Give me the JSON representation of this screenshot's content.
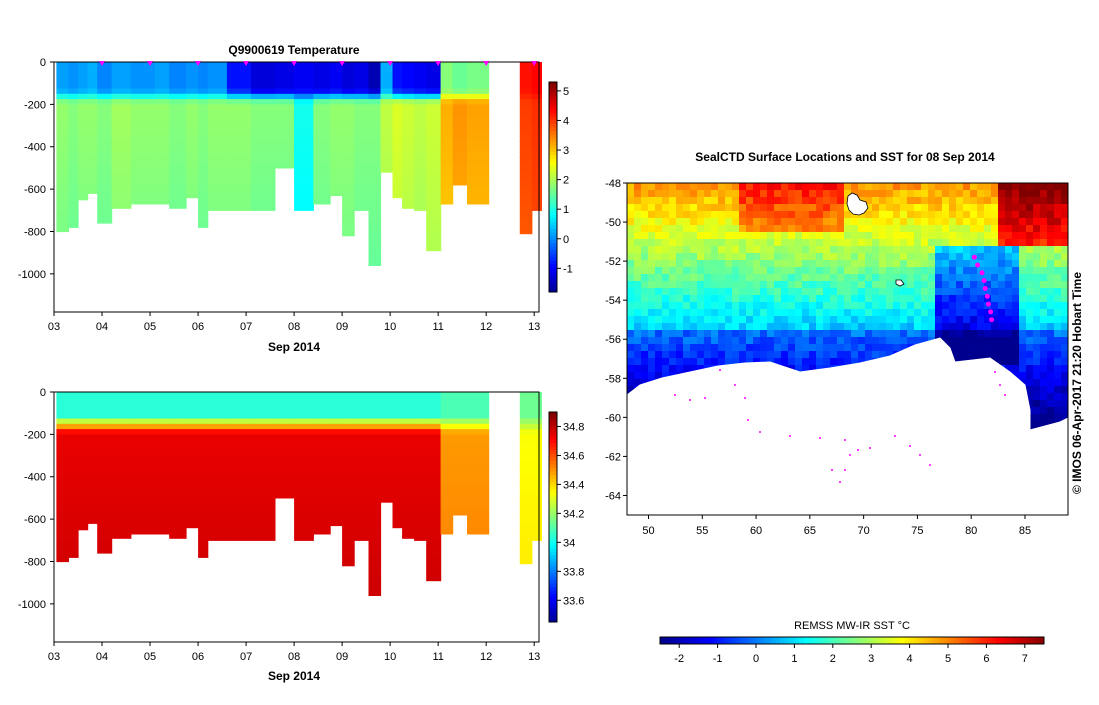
{
  "colors": {
    "jet": [
      "#00008f",
      "#0000ff",
      "#0080ff",
      "#00ffff",
      "#80ff80",
      "#ffff00",
      "#ff8000",
      "#ff0000",
      "#800000"
    ],
    "profile_marker": "#ff00ff",
    "track": "#ff00ff",
    "land": "#ffffff"
  },
  "chart_data": [
    {
      "id": "temperature",
      "type": "heatmap",
      "title": "Q9900619  Temperature",
      "xlabel": "Sep 2014",
      "x_tick_labels": [
        "03",
        "04",
        "05",
        "06",
        "07",
        "08",
        "09",
        "10",
        "11",
        "12",
        "13"
      ],
      "x_ticks": [
        3,
        4,
        5,
        6,
        7,
        8,
        9,
        10,
        11,
        12,
        13
      ],
      "xlim": [
        3.0,
        13.1
      ],
      "y_tick_labels": [
        "0",
        "-200",
        "-400",
        "-600",
        "-800",
        "-1000"
      ],
      "y_ticks": [
        0,
        -200,
        -400,
        -600,
        -800,
        -1000
      ],
      "ylim": [
        -1180,
        0
      ],
      "colorbar": {
        "ticks": [
          5,
          4,
          3,
          2,
          1,
          0,
          -1
        ],
        "tick_labels": [
          "5",
          "4",
          "3",
          "2",
          "1",
          "0",
          "-1"
        ],
        "range": [
          -1.8,
          5.3
        ]
      },
      "profile_markers": [
        4,
        5,
        6,
        7,
        8,
        9,
        10,
        11,
        12,
        13
      ],
      "profiles": [
        {
          "t": 3.05,
          "maxdepth": -800,
          "surface": 0.2,
          "deep": 1.9
        },
        {
          "t": 3.3,
          "maxdepth": -780,
          "surface": 0.1,
          "deep": 1.8
        },
        {
          "t": 3.5,
          "maxdepth": -650,
          "surface": 0.2,
          "deep": 1.9
        },
        {
          "t": 3.7,
          "maxdepth": -620,
          "surface": 0.3,
          "deep": 1.9
        },
        {
          "t": 3.9,
          "maxdepth": -760,
          "surface": 0.0,
          "deep": 1.8
        },
        {
          "t": 4.2,
          "maxdepth": -690,
          "surface": 0.2,
          "deep": 2.0
        },
        {
          "t": 4.6,
          "maxdepth": -670,
          "surface": 0.1,
          "deep": 1.9
        },
        {
          "t": 5.1,
          "maxdepth": -670,
          "surface": 0.2,
          "deep": 1.9
        },
        {
          "t": 5.4,
          "maxdepth": -690,
          "surface": 0.0,
          "deep": 1.8
        },
        {
          "t": 5.75,
          "maxdepth": -640,
          "surface": 0.1,
          "deep": 1.9
        },
        {
          "t": 6.0,
          "maxdepth": -780,
          "surface": 0.0,
          "deep": 1.8
        },
        {
          "t": 6.2,
          "maxdepth": -700,
          "surface": 0.1,
          "deep": 1.9
        },
        {
          "t": 6.6,
          "maxdepth": -700,
          "surface": -0.8,
          "deep": 1.9
        },
        {
          "t": 7.1,
          "maxdepth": -700,
          "surface": -1.2,
          "deep": 1.8
        },
        {
          "t": 7.6,
          "maxdepth": -500,
          "surface": -1.1,
          "deep": 1.8
        },
        {
          "t": 8.0,
          "maxdepth": -700,
          "surface": -1.0,
          "deep": 1.0
        },
        {
          "t": 8.4,
          "maxdepth": -670,
          "surface": -1.1,
          "deep": 1.8
        },
        {
          "t": 8.75,
          "maxdepth": -630,
          "surface": -1.0,
          "deep": 1.9
        },
        {
          "t": 9.0,
          "maxdepth": -820,
          "surface": -1.2,
          "deep": 1.9
        },
        {
          "t": 9.25,
          "maxdepth": -700,
          "surface": -1.1,
          "deep": 1.8
        },
        {
          "t": 9.55,
          "maxdepth": -960,
          "surface": -1.5,
          "deep": 1.8
        },
        {
          "t": 9.8,
          "maxdepth": -520,
          "surface": 0.3,
          "deep": 2.2
        },
        {
          "t": 10.05,
          "maxdepth": -640,
          "surface": -0.8,
          "deep": 2.4
        },
        {
          "t": 10.25,
          "maxdepth": -690,
          "surface": -0.9,
          "deep": 2.3
        },
        {
          "t": 10.5,
          "maxdepth": -700,
          "surface": -1.0,
          "deep": 2.2
        },
        {
          "t": 10.75,
          "maxdepth": -890,
          "surface": -1.1,
          "deep": 2.3
        },
        {
          "t": 11.05,
          "maxdepth": -670,
          "surface": 1.8,
          "deep": 3.2
        },
        {
          "t": 11.3,
          "maxdepth": -580,
          "surface": 1.6,
          "deep": 3.4
        },
        {
          "t": 11.6,
          "maxdepth": -670,
          "surface": 1.7,
          "deep": 3.3
        },
        {
          "t": 12.7,
          "maxdepth": -810,
          "surface": 4.3,
          "deep": 4.0
        },
        {
          "t": 12.95,
          "maxdepth": -700,
          "surface": 4.4,
          "deep": 4.1
        }
      ]
    },
    {
      "id": "salinity",
      "type": "heatmap",
      "title": "",
      "xlabel": "Sep 2014",
      "x_tick_labels": [
        "03",
        "04",
        "05",
        "06",
        "07",
        "08",
        "09",
        "10",
        "11",
        "12",
        "13"
      ],
      "x_ticks": [
        3,
        4,
        5,
        6,
        7,
        8,
        9,
        10,
        11,
        12,
        13
      ],
      "xlim": [
        3.0,
        13.1
      ],
      "y_tick_labels": [
        "0",
        "-200",
        "-400",
        "-600",
        "-800",
        "-1000"
      ],
      "y_ticks": [
        0,
        -200,
        -400,
        -600,
        -800,
        -1000
      ],
      "ylim": [
        -1180,
        0
      ],
      "colorbar": {
        "ticks": [
          34.8,
          34.6,
          34.4,
          34.2,
          34,
          33.8,
          33.6
        ],
        "tick_labels": [
          "34.8",
          "34.6",
          "34.4",
          "34.2",
          "34",
          "33.8",
          "33.6"
        ],
        "range": [
          33.45,
          34.9
        ]
      },
      "profiles_from": "temperature",
      "surface_value": 34.05,
      "deep_value": 34.75
    },
    {
      "id": "sst_map",
      "type": "heatmap",
      "title": "SealCTD Surface Locations and SST for 08 Sep 2014",
      "x_tick_labels": [
        "50",
        "55",
        "60",
        "65",
        "70",
        "75",
        "80",
        "85"
      ],
      "x_ticks": [
        50,
        55,
        60,
        65,
        70,
        75,
        80,
        85
      ],
      "xlim": [
        48,
        89
      ],
      "y_tick_labels": [
        "-48",
        "-50",
        "-52",
        "-54",
        "-56",
        "-58",
        "-60",
        "-62",
        "-64"
      ],
      "y_ticks": [
        -48,
        -50,
        -52,
        -54,
        -56,
        -58,
        -60,
        -62,
        -64
      ],
      "ylim": [
        -65,
        -48
      ],
      "colorbar": {
        "label": "REMSS MW-IR SST °C",
        "ticks": [
          -2,
          -1,
          0,
          1,
          2,
          3,
          4,
          5,
          6,
          7
        ],
        "tick_labels": [
          "-2",
          "-1",
          "0",
          "1",
          "2",
          "3",
          "4",
          "5",
          "6",
          "7"
        ],
        "range": [
          -2.5,
          7.5
        ]
      },
      "track_points": [
        [
          80.3,
          -51.8
        ],
        [
          80.6,
          -52.2
        ],
        [
          81.0,
          -52.6
        ],
        [
          81.2,
          -53.0
        ],
        [
          81.3,
          -53.4
        ],
        [
          81.5,
          -53.8
        ],
        [
          81.6,
          -54.2
        ],
        [
          81.8,
          -54.6
        ],
        [
          81.9,
          -55.0
        ]
      ]
    }
  ],
  "credit": "© IMOS 06-Apr-2017 21:20 Hobart Time"
}
